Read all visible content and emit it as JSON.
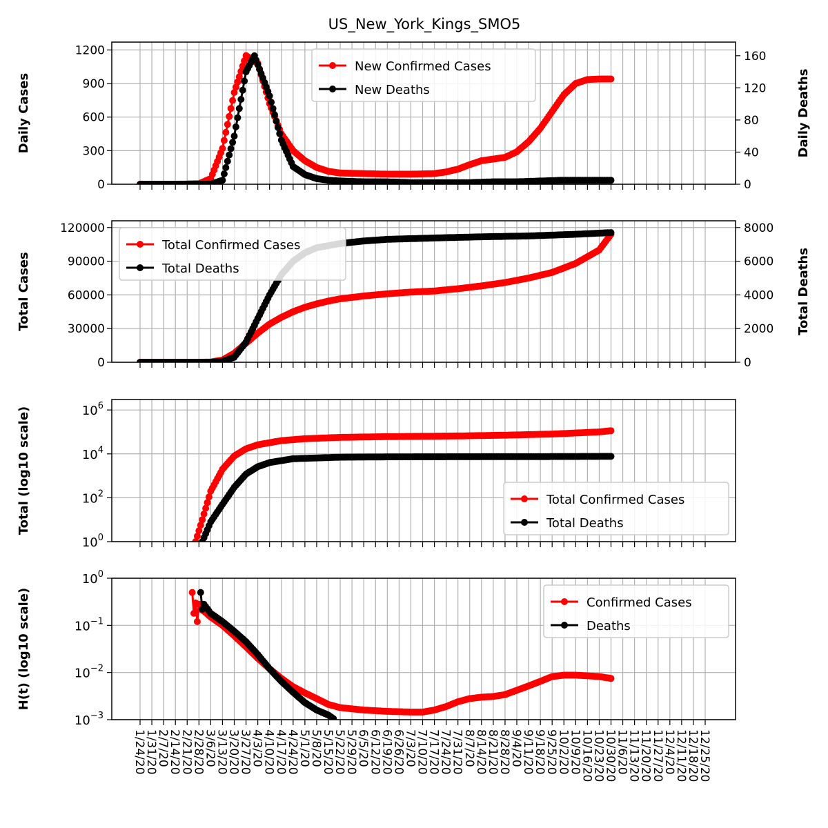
{
  "figure": {
    "title": "US_New_York_Kings_SMO5",
    "x_tick_labels": [
      "1/24/20",
      "1/31/20",
      "2/7/20",
      "2/14/20",
      "2/21/20",
      "2/28/20",
      "3/6/20",
      "3/13/20",
      "3/20/20",
      "3/27/20",
      "4/3/20",
      "4/10/20",
      "4/17/20",
      "4/24/20",
      "5/1/20",
      "5/8/20",
      "5/15/20",
      "5/22/20",
      "5/29/20",
      "6/5/20",
      "6/12/20",
      "6/19/20",
      "6/26/20",
      "7/3/20",
      "7/10/20",
      "7/17/20",
      "7/24/20",
      "7/31/20",
      "8/7/20",
      "8/14/20",
      "8/21/20",
      "8/28/20",
      "9/4/20",
      "9/11/20",
      "9/18/20",
      "9/25/20",
      "10/2/20",
      "10/9/20",
      "10/16/20",
      "10/23/20",
      "10/30/20",
      "11/6/20",
      "11/13/20",
      "11/20/20",
      "11/27/20",
      "12/4/20",
      "12/11/20",
      "12/18/20",
      "12/25/20"
    ],
    "colors": {
      "cases": "#ff0000",
      "deaths": "#000000",
      "grid": "#b0b0b0"
    }
  },
  "chart_data": [
    {
      "type": "line",
      "ylabel": "Daily Cases",
      "ylabel_right": "Daily Deaths",
      "ylim": [
        0,
        1270
      ],
      "y_ticks": [
        0,
        300,
        600,
        900,
        1200
      ],
      "ylim_right": [
        0,
        177
      ],
      "y_ticks_right": [
        0,
        40,
        80,
        120,
        160
      ],
      "legend": "top-center",
      "grid": true,
      "series": [
        {
          "name": "New Confirmed Cases",
          "color": "#ff0000",
          "axis": "left",
          "points": [
            [
              "1/24/20",
              0
            ],
            [
              "2/14/20",
              0
            ],
            [
              "2/28/20",
              5
            ],
            [
              "3/6/20",
              50
            ],
            [
              "3/13/20",
              320
            ],
            [
              "3/20/20",
              820
            ],
            [
              "3/27/20",
              1150
            ],
            [
              "4/3/20",
              1080
            ],
            [
              "4/10/20",
              720
            ],
            [
              "4/17/20",
              450
            ],
            [
              "4/24/20",
              300
            ],
            [
              "5/1/20",
              210
            ],
            [
              "5/8/20",
              150
            ],
            [
              "5/15/20",
              115
            ],
            [
              "5/22/20",
              100
            ],
            [
              "6/5/20",
              95
            ],
            [
              "6/19/20",
              90
            ],
            [
              "7/3/20",
              90
            ],
            [
              "7/17/20",
              95
            ],
            [
              "7/24/20",
              110
            ],
            [
              "7/31/20",
              135
            ],
            [
              "8/7/20",
              175
            ],
            [
              "8/14/20",
              210
            ],
            [
              "8/21/20",
              225
            ],
            [
              "8/28/20",
              240
            ],
            [
              "9/4/20",
              290
            ],
            [
              "9/11/20",
              380
            ],
            [
              "9/18/20",
              500
            ],
            [
              "9/25/20",
              650
            ],
            [
              "10/2/20",
              800
            ],
            [
              "10/9/20",
              900
            ],
            [
              "10/16/20",
              935
            ],
            [
              "10/23/20",
              940
            ],
            [
              "10/30/20",
              940
            ]
          ]
        },
        {
          "name": "New Deaths",
          "color": "#000000",
          "axis": "right",
          "points": [
            [
              "1/24/20",
              0
            ],
            [
              "3/6/20",
              0
            ],
            [
              "3/13/20",
              5
            ],
            [
              "3/20/20",
              60
            ],
            [
              "3/27/20",
              140
            ],
            [
              "4/1/20",
              160
            ],
            [
              "4/10/20",
              110
            ],
            [
              "4/17/20",
              55
            ],
            [
              "4/24/20",
              22
            ],
            [
              "5/1/20",
              12
            ],
            [
              "5/8/20",
              7
            ],
            [
              "5/15/20",
              5
            ],
            [
              "5/22/20",
              4
            ],
            [
              "6/5/20",
              3
            ],
            [
              "6/19/20",
              3
            ],
            [
              "7/3/20",
              2
            ],
            [
              "7/17/20",
              2
            ],
            [
              "8/7/20",
              2
            ],
            [
              "8/21/20",
              3
            ],
            [
              "9/4/20",
              3
            ],
            [
              "9/18/20",
              4
            ],
            [
              "10/2/20",
              5
            ],
            [
              "10/16/20",
              5
            ],
            [
              "10/30/20",
              5
            ]
          ]
        }
      ]
    },
    {
      "type": "line",
      "ylabel": "Total Cases",
      "ylabel_right": "Total Deaths",
      "ylim": [
        0,
        126000
      ],
      "y_ticks": [
        0,
        30000,
        60000,
        90000,
        120000
      ],
      "ylim_right": [
        0,
        8400
      ],
      "y_ticks_right": [
        0,
        2000,
        4000,
        6000,
        8000
      ],
      "legend": "top-left",
      "grid": true,
      "series": [
        {
          "name": "Total Confirmed Cases",
          "color": "#ff0000",
          "axis": "left",
          "points": [
            [
              "1/24/20",
              0
            ],
            [
              "2/28/20",
              0
            ],
            [
              "3/6/20",
              200
            ],
            [
              "3/13/20",
              2000
            ],
            [
              "3/20/20",
              8000
            ],
            [
              "3/27/20",
              17000
            ],
            [
              "4/3/20",
              26000
            ],
            [
              "4/10/20",
              34000
            ],
            [
              "4/17/20",
              40000
            ],
            [
              "4/24/20",
              45000
            ],
            [
              "5/1/20",
              49000
            ],
            [
              "5/8/20",
              52000
            ],
            [
              "5/15/20",
              54500
            ],
            [
              "5/22/20",
              56500
            ],
            [
              "6/5/20",
              59000
            ],
            [
              "6/19/20",
              61000
            ],
            [
              "7/3/20",
              62500
            ],
            [
              "7/17/20",
              63500
            ],
            [
              "7/31/20",
              65500
            ],
            [
              "8/14/20",
              68000
            ],
            [
              "8/28/20",
              71000
            ],
            [
              "9/11/20",
              75000
            ],
            [
              "9/25/20",
              80000
            ],
            [
              "10/9/20",
              88000
            ],
            [
              "10/23/20",
              100000
            ],
            [
              "10/30/20",
              114000
            ]
          ]
        },
        {
          "name": "Total Deaths",
          "color": "#000000",
          "axis": "right",
          "points": [
            [
              "1/24/20",
              0
            ],
            [
              "3/6/20",
              0
            ],
            [
              "3/13/20",
              50
            ],
            [
              "3/20/20",
              300
            ],
            [
              "3/27/20",
              1200
            ],
            [
              "4/3/20",
              2600
            ],
            [
              "4/10/20",
              4000
            ],
            [
              "4/17/20",
              5200
            ],
            [
              "4/24/20",
              6000
            ],
            [
              "5/1/20",
              6500
            ],
            [
              "5/8/20",
              6800
            ],
            [
              "5/22/20",
              7050
            ],
            [
              "6/5/20",
              7200
            ],
            [
              "6/19/20",
              7300
            ],
            [
              "7/17/20",
              7380
            ],
            [
              "8/14/20",
              7450
            ],
            [
              "9/11/20",
              7500
            ],
            [
              "10/9/20",
              7600
            ],
            [
              "10/30/20",
              7700
            ]
          ]
        }
      ]
    },
    {
      "type": "line",
      "ylabel": "Total (log10 scale)",
      "yscale": "log",
      "ylim": [
        1,
        3000000
      ],
      "y_ticks": [
        "10^0",
        "10^2",
        "10^4",
        "10^6"
      ],
      "legend": "bottom-right",
      "grid": true,
      "series": [
        {
          "name": "Total Confirmed Cases",
          "color": "#ff0000",
          "points": [
            [
              "2/26/20",
              1
            ],
            [
              "3/1/20",
              10
            ],
            [
              "3/6/20",
              200
            ],
            [
              "3/13/20",
              2000
            ],
            [
              "3/20/20",
              8000
            ],
            [
              "3/27/20",
              17000
            ],
            [
              "4/3/20",
              26000
            ],
            [
              "4/17/20",
              40000
            ],
            [
              "5/1/20",
              49000
            ],
            [
              "5/22/20",
              56500
            ],
            [
              "6/19/20",
              61000
            ],
            [
              "7/31/20",
              65500
            ],
            [
              "8/28/20",
              71000
            ],
            [
              "9/25/20",
              80000
            ],
            [
              "10/23/20",
              100000
            ],
            [
              "10/30/20",
              114000
            ]
          ]
        },
        {
          "name": "Total Deaths",
          "color": "#000000",
          "points": [
            [
              "3/1/20",
              1
            ],
            [
              "3/6/20",
              8
            ],
            [
              "3/13/20",
              50
            ],
            [
              "3/20/20",
              300
            ],
            [
              "3/27/20",
              1200
            ],
            [
              "4/3/20",
              2600
            ],
            [
              "4/10/20",
              4000
            ],
            [
              "4/24/20",
              6000
            ],
            [
              "5/22/20",
              7050
            ],
            [
              "6/19/20",
              7300
            ],
            [
              "8/14/20",
              7450
            ],
            [
              "10/9/20",
              7600
            ],
            [
              "10/30/20",
              7700
            ]
          ]
        }
      ]
    },
    {
      "type": "line",
      "ylabel": "H(t) (log10 scale)",
      "yscale": "log",
      "ylim": [
        0.001,
        1
      ],
      "y_ticks": [
        "10^-3",
        "10^-2",
        "10^-1",
        "10^0"
      ],
      "legend": "top-right",
      "grid": true,
      "series": [
        {
          "name": "Confirmed Cases",
          "color": "#ff0000",
          "points": [
            [
              "2/24/20",
              0.5
            ],
            [
              "2/25/20",
              0.18
            ],
            [
              "2/26/20",
              0.3
            ],
            [
              "2/27/20",
              0.12
            ],
            [
              "2/28/20",
              0.28
            ],
            [
              "2/29/20",
              0.22
            ],
            [
              "3/2/20",
              0.2
            ],
            [
              "3/6/20",
              0.15
            ],
            [
              "3/13/20",
              0.1
            ],
            [
              "3/20/20",
              0.06
            ],
            [
              "3/27/20",
              0.035
            ],
            [
              "4/3/20",
              0.02
            ],
            [
              "4/10/20",
              0.012
            ],
            [
              "4/17/20",
              0.0075
            ],
            [
              "4/24/20",
              0.005
            ],
            [
              "5/1/20",
              0.0037
            ],
            [
              "5/8/20",
              0.0028
            ],
            [
              "5/15/20",
              0.0021
            ],
            [
              "5/22/20",
              0.0018
            ],
            [
              "6/5/20",
              0.0016
            ],
            [
              "6/19/20",
              0.0015
            ],
            [
              "7/3/20",
              0.00145
            ],
            [
              "7/10/20",
              0.00145
            ],
            [
              "7/17/20",
              0.0016
            ],
            [
              "7/24/20",
              0.0019
            ],
            [
              "7/31/20",
              0.0024
            ],
            [
              "8/7/20",
              0.0028
            ],
            [
              "8/14/20",
              0.003
            ],
            [
              "8/21/20",
              0.0031
            ],
            [
              "8/28/20",
              0.0034
            ],
            [
              "9/4/20",
              0.0042
            ],
            [
              "9/11/20",
              0.0052
            ],
            [
              "9/18/20",
              0.0065
            ],
            [
              "9/25/20",
              0.0082
            ],
            [
              "10/2/20",
              0.0088
            ],
            [
              "10/9/20",
              0.0088
            ],
            [
              "10/16/20",
              0.0085
            ],
            [
              "10/23/20",
              0.0082
            ],
            [
              "10/30/20",
              0.0075
            ]
          ]
        },
        {
          "name": "Deaths",
          "color": "#000000",
          "points": [
            [
              "2/29/20",
              0.5
            ],
            [
              "3/1/20",
              0.22
            ],
            [
              "3/2/20",
              0.28
            ],
            [
              "3/6/20",
              0.18
            ],
            [
              "3/13/20",
              0.12
            ],
            [
              "3/20/20",
              0.075
            ],
            [
              "3/27/20",
              0.045
            ],
            [
              "4/3/20",
              0.024
            ],
            [
              "4/10/20",
              0.012
            ],
            [
              "4/17/20",
              0.0065
            ],
            [
              "4/24/20",
              0.0038
            ],
            [
              "5/1/20",
              0.0023
            ],
            [
              "5/8/20",
              0.0016
            ],
            [
              "5/15/20",
              0.00125
            ],
            [
              "5/18/20",
              0.00105
            ]
          ]
        }
      ]
    }
  ]
}
